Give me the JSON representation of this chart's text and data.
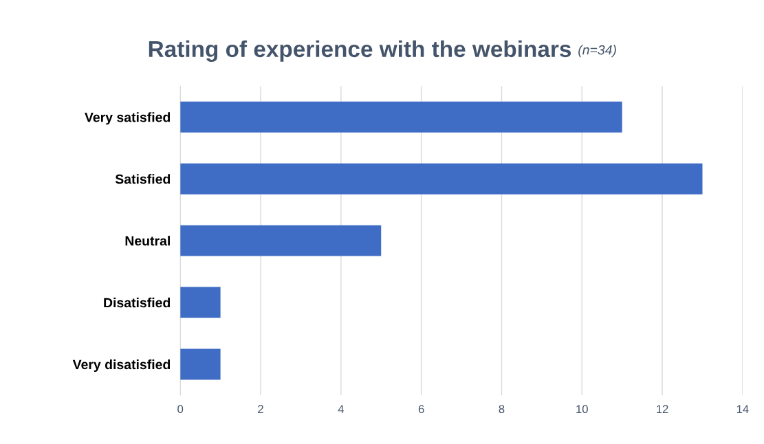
{
  "chart_data": {
    "type": "bar",
    "orientation": "horizontal",
    "title": "Rating of experience with the webinars",
    "subtitle": "(n=34)",
    "categories": [
      "Very satisfied",
      "Satisfied",
      "Neutral",
      "Disatisfied",
      "Very disatisfied"
    ],
    "values": [
      11,
      13,
      5,
      1,
      1
    ],
    "color": "#3f6cc4",
    "xlim": [
      0,
      14
    ],
    "xticks": [
      0,
      2,
      4,
      6,
      8,
      10,
      12,
      14
    ],
    "grid": "x",
    "legend": false
  }
}
